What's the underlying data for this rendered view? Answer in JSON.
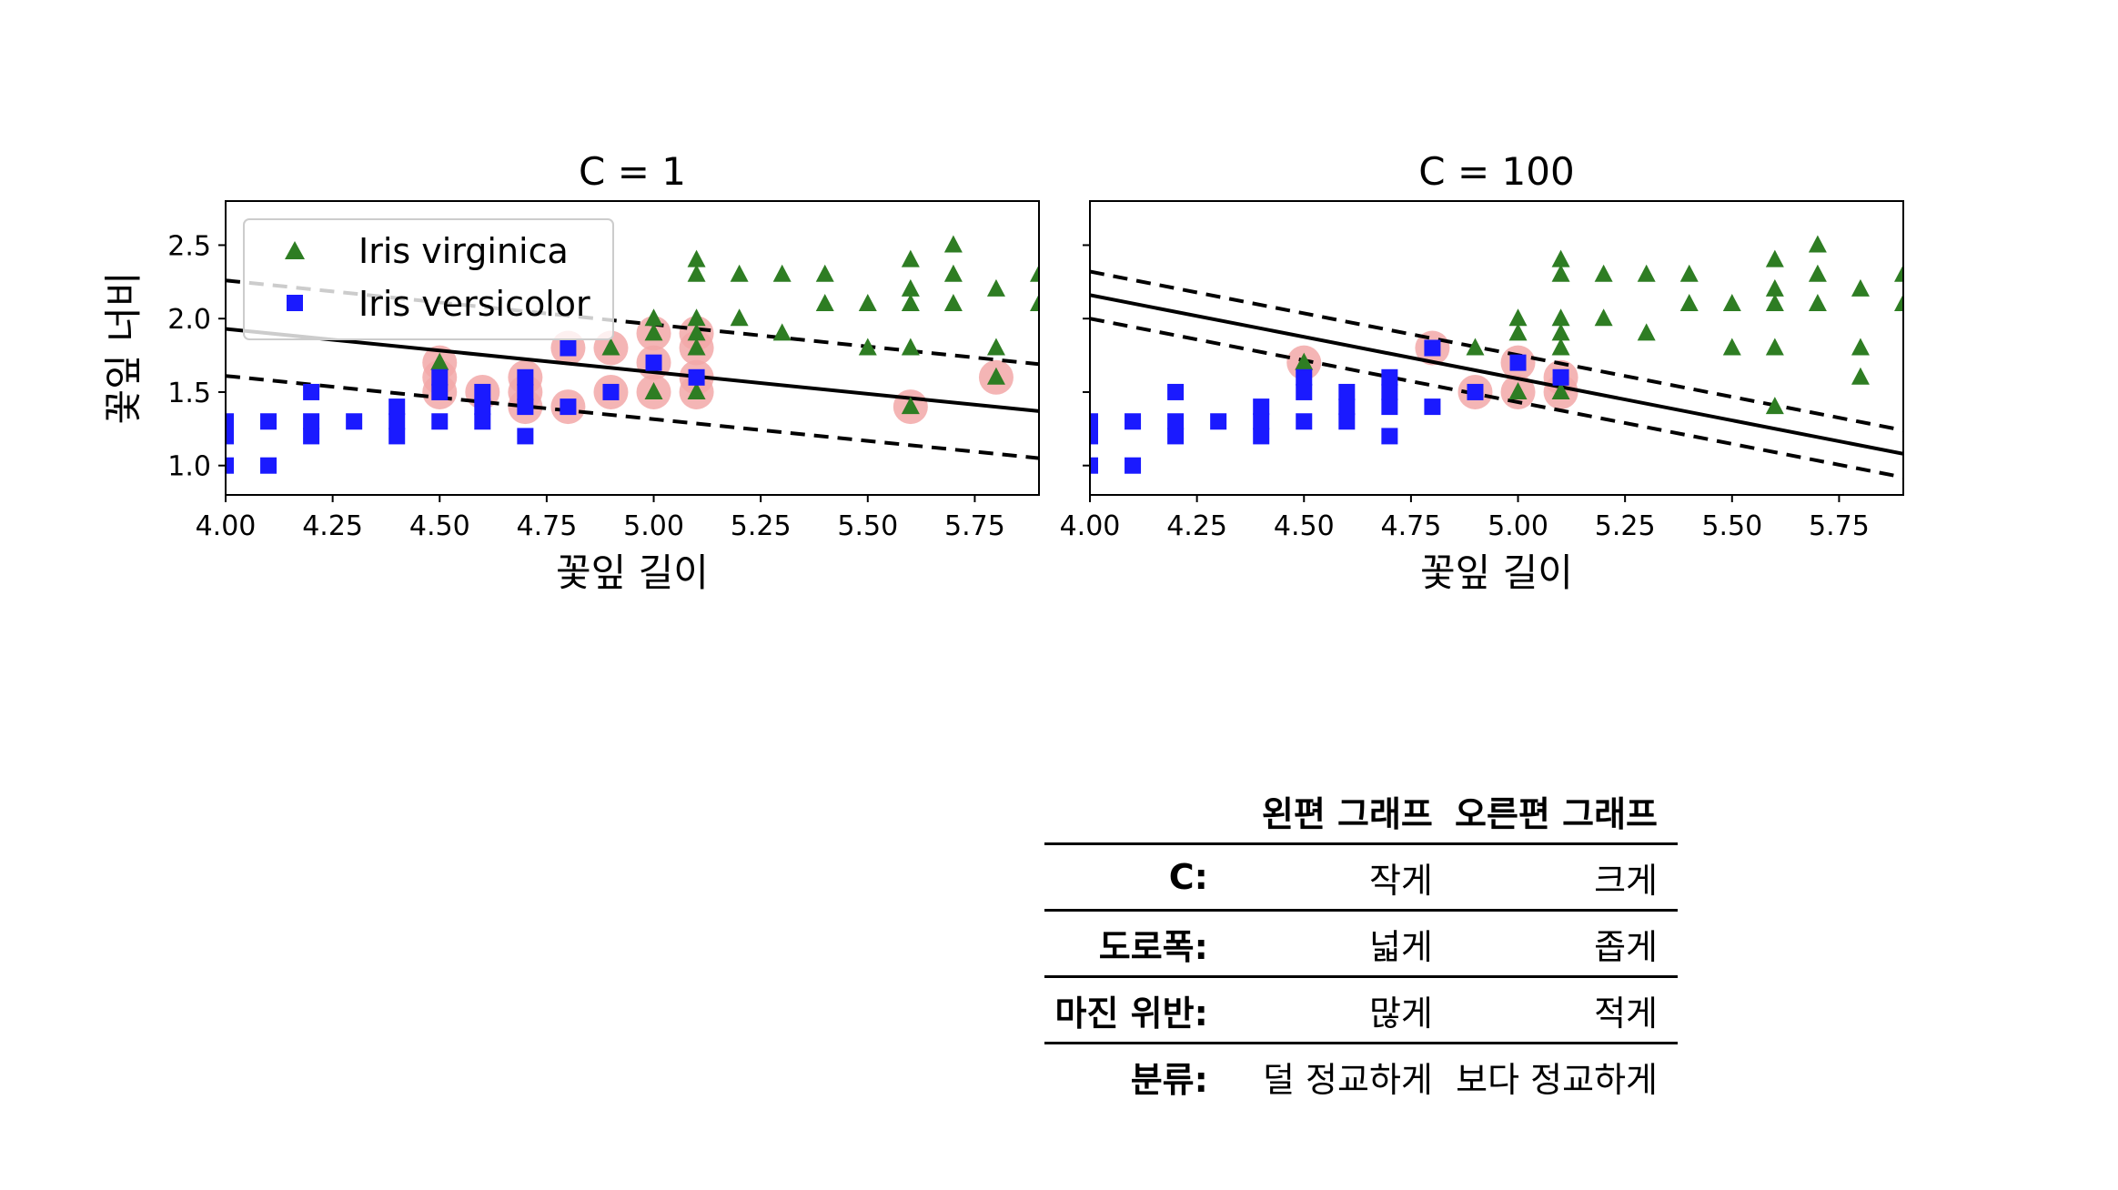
{
  "chart_data": [
    {
      "type": "scatter",
      "title": "C = 1",
      "xlabel": "꽃잎 길이",
      "ylabel": "꽃잎 너비",
      "xlim": [
        4.0,
        5.9
      ],
      "ylim": [
        0.8,
        2.8
      ],
      "xticks": [
        "4.00",
        "4.25",
        "4.50",
        "4.75",
        "5.00",
        "5.25",
        "5.50",
        "5.75"
      ],
      "yticks": [
        "1.0",
        "1.5",
        "2.0",
        "2.5"
      ],
      "legend": {
        "placement": "upper-left",
        "entries": [
          "Iris virginica",
          "Iris versicolor"
        ]
      },
      "series": [
        {
          "name": "Iris virginica",
          "marker": "triangle",
          "color": "#2e7d23",
          "points": [
            [
              4.5,
              1.7
            ],
            [
              4.9,
              1.8
            ],
            [
              5.0,
              2.0
            ],
            [
              5.0,
              1.9
            ],
            [
              5.0,
              1.5
            ],
            [
              5.1,
              2.4
            ],
            [
              5.1,
              2.3
            ],
            [
              5.1,
              2.0
            ],
            [
              5.1,
              1.9
            ],
            [
              5.1,
              1.8
            ],
            [
              5.1,
              1.5
            ],
            [
              5.2,
              2.3
            ],
            [
              5.2,
              2.0
            ],
            [
              5.3,
              2.3
            ],
            [
              5.3,
              1.9
            ],
            [
              5.4,
              2.3
            ],
            [
              5.4,
              2.1
            ],
            [
              5.5,
              2.1
            ],
            [
              5.5,
              1.8
            ],
            [
              5.6,
              2.4
            ],
            [
              5.6,
              2.2
            ],
            [
              5.6,
              2.1
            ],
            [
              5.6,
              1.8
            ],
            [
              5.6,
              1.4
            ],
            [
              5.7,
              2.5
            ],
            [
              5.7,
              2.3
            ],
            [
              5.7,
              2.1
            ],
            [
              5.8,
              2.2
            ],
            [
              5.8,
              1.8
            ],
            [
              5.8,
              1.6
            ],
            [
              5.9,
              2.3
            ],
            [
              5.9,
              2.1
            ]
          ]
        },
        {
          "name": "Iris versicolor",
          "marker": "square",
          "color": "#1a1aff",
          "points": [
            [
              4.0,
              1.3
            ],
            [
              4.0,
              1.2
            ],
            [
              4.0,
              1.0
            ],
            [
              4.1,
              1.3
            ],
            [
              4.1,
              1.0
            ],
            [
              4.2,
              1.5
            ],
            [
              4.2,
              1.3
            ],
            [
              4.2,
              1.2
            ],
            [
              4.3,
              1.3
            ],
            [
              4.4,
              1.4
            ],
            [
              4.4,
              1.3
            ],
            [
              4.4,
              1.2
            ],
            [
              4.5,
              1.6
            ],
            [
              4.5,
              1.5
            ],
            [
              4.5,
              1.3
            ],
            [
              4.6,
              1.5
            ],
            [
              4.6,
              1.4
            ],
            [
              4.6,
              1.3
            ],
            [
              4.7,
              1.6
            ],
            [
              4.7,
              1.5
            ],
            [
              4.7,
              1.4
            ],
            [
              4.7,
              1.2
            ],
            [
              4.8,
              1.8
            ],
            [
              4.8,
              1.4
            ],
            [
              4.9,
              1.5
            ],
            [
              5.0,
              1.7
            ],
            [
              5.1,
              1.6
            ]
          ]
        }
      ],
      "support_vectors": [
        [
          4.5,
          1.7
        ],
        [
          4.5,
          1.6
        ],
        [
          4.5,
          1.5
        ],
        [
          4.6,
          1.5
        ],
        [
          4.7,
          1.6
        ],
        [
          4.7,
          1.5
        ],
        [
          4.7,
          1.4
        ],
        [
          4.8,
          1.8
        ],
        [
          4.8,
          1.4
        ],
        [
          4.9,
          1.8
        ],
        [
          4.9,
          1.5
        ],
        [
          5.0,
          1.9
        ],
        [
          5.0,
          1.7
        ],
        [
          5.0,
          1.5
        ],
        [
          5.1,
          1.9
        ],
        [
          5.1,
          1.8
        ],
        [
          5.1,
          1.6
        ],
        [
          5.1,
          1.5
        ],
        [
          5.6,
          1.4
        ],
        [
          5.8,
          1.6
        ]
      ],
      "decision_boundary": [
        [
          4.0,
          1.93
        ],
        [
          5.9,
          1.37
        ]
      ],
      "margin_upper": [
        [
          4.0,
          2.26
        ],
        [
          5.9,
          1.69
        ]
      ],
      "margin_lower": [
        [
          4.0,
          1.61
        ],
        [
          5.9,
          1.05
        ]
      ]
    },
    {
      "type": "scatter",
      "title": "C = 100",
      "xlabel": "꽃잎 길이",
      "ylabel": "",
      "xlim": [
        4.0,
        5.9
      ],
      "ylim": [
        0.8,
        2.8
      ],
      "xticks": [
        "4.00",
        "4.25",
        "4.50",
        "4.75",
        "5.00",
        "5.25",
        "5.50",
        "5.75"
      ],
      "yticks": [
        "1.0",
        "1.5",
        "2.0",
        "2.5"
      ],
      "series": [
        {
          "name": "Iris virginica",
          "marker": "triangle",
          "color": "#2e7d23",
          "points": [
            [
              4.5,
              1.7
            ],
            [
              4.9,
              1.8
            ],
            [
              5.0,
              2.0
            ],
            [
              5.0,
              1.9
            ],
            [
              5.0,
              1.5
            ],
            [
              5.1,
              2.4
            ],
            [
              5.1,
              2.3
            ],
            [
              5.1,
              2.0
            ],
            [
              5.1,
              1.9
            ],
            [
              5.1,
              1.8
            ],
            [
              5.1,
              1.5
            ],
            [
              5.2,
              2.3
            ],
            [
              5.2,
              2.0
            ],
            [
              5.3,
              2.3
            ],
            [
              5.3,
              1.9
            ],
            [
              5.4,
              2.3
            ],
            [
              5.4,
              2.1
            ],
            [
              5.5,
              2.1
            ],
            [
              5.5,
              1.8
            ],
            [
              5.6,
              2.4
            ],
            [
              5.6,
              2.2
            ],
            [
              5.6,
              2.1
            ],
            [
              5.6,
              1.8
            ],
            [
              5.6,
              1.4
            ],
            [
              5.7,
              2.5
            ],
            [
              5.7,
              2.3
            ],
            [
              5.7,
              2.1
            ],
            [
              5.8,
              2.2
            ],
            [
              5.8,
              1.8
            ],
            [
              5.8,
              1.6
            ],
            [
              5.9,
              2.3
            ],
            [
              5.9,
              2.1
            ]
          ]
        },
        {
          "name": "Iris versicolor",
          "marker": "square",
          "color": "#1a1aff",
          "points": [
            [
              4.0,
              1.3
            ],
            [
              4.0,
              1.2
            ],
            [
              4.0,
              1.0
            ],
            [
              4.1,
              1.3
            ],
            [
              4.1,
              1.0
            ],
            [
              4.2,
              1.5
            ],
            [
              4.2,
              1.3
            ],
            [
              4.2,
              1.2
            ],
            [
              4.3,
              1.3
            ],
            [
              4.4,
              1.4
            ],
            [
              4.4,
              1.3
            ],
            [
              4.4,
              1.2
            ],
            [
              4.5,
              1.6
            ],
            [
              4.5,
              1.5
            ],
            [
              4.5,
              1.3
            ],
            [
              4.6,
              1.5
            ],
            [
              4.6,
              1.4
            ],
            [
              4.6,
              1.3
            ],
            [
              4.7,
              1.6
            ],
            [
              4.7,
              1.5
            ],
            [
              4.7,
              1.4
            ],
            [
              4.7,
              1.2
            ],
            [
              4.8,
              1.8
            ],
            [
              4.8,
              1.4
            ],
            [
              4.9,
              1.5
            ],
            [
              5.0,
              1.7
            ],
            [
              5.1,
              1.6
            ]
          ]
        }
      ],
      "support_vectors": [
        [
          4.5,
          1.7
        ],
        [
          4.8,
          1.8
        ],
        [
          4.9,
          1.5
        ],
        [
          5.0,
          1.7
        ],
        [
          5.0,
          1.5
        ],
        [
          5.1,
          1.6
        ],
        [
          5.1,
          1.5
        ]
      ],
      "decision_boundary": [
        [
          4.0,
          2.16
        ],
        [
          5.9,
          1.08
        ]
      ],
      "margin_upper": [
        [
          4.0,
          2.32
        ],
        [
          5.9,
          1.24
        ]
      ],
      "margin_lower": [
        [
          4.0,
          2.0
        ],
        [
          5.9,
          0.92
        ]
      ]
    }
  ],
  "table": {
    "headers": [
      "",
      "왼편 그래프",
      "오른편 그래프"
    ],
    "rows": [
      {
        "label": "C:",
        "left": "작게",
        "right": "크게"
      },
      {
        "label": "도로폭:",
        "left": "넓게",
        "right": "좁게"
      },
      {
        "label": "마진 위반:",
        "left": "많게",
        "right": "적게"
      },
      {
        "label": "분류:",
        "left": "덜 정교하게",
        "right": "보다 정교하게"
      }
    ]
  },
  "colors": {
    "virginica": "#2e7d23",
    "versicolor": "#1a1aff",
    "support_vector": "#f2a8a8",
    "line": "#000000"
  }
}
